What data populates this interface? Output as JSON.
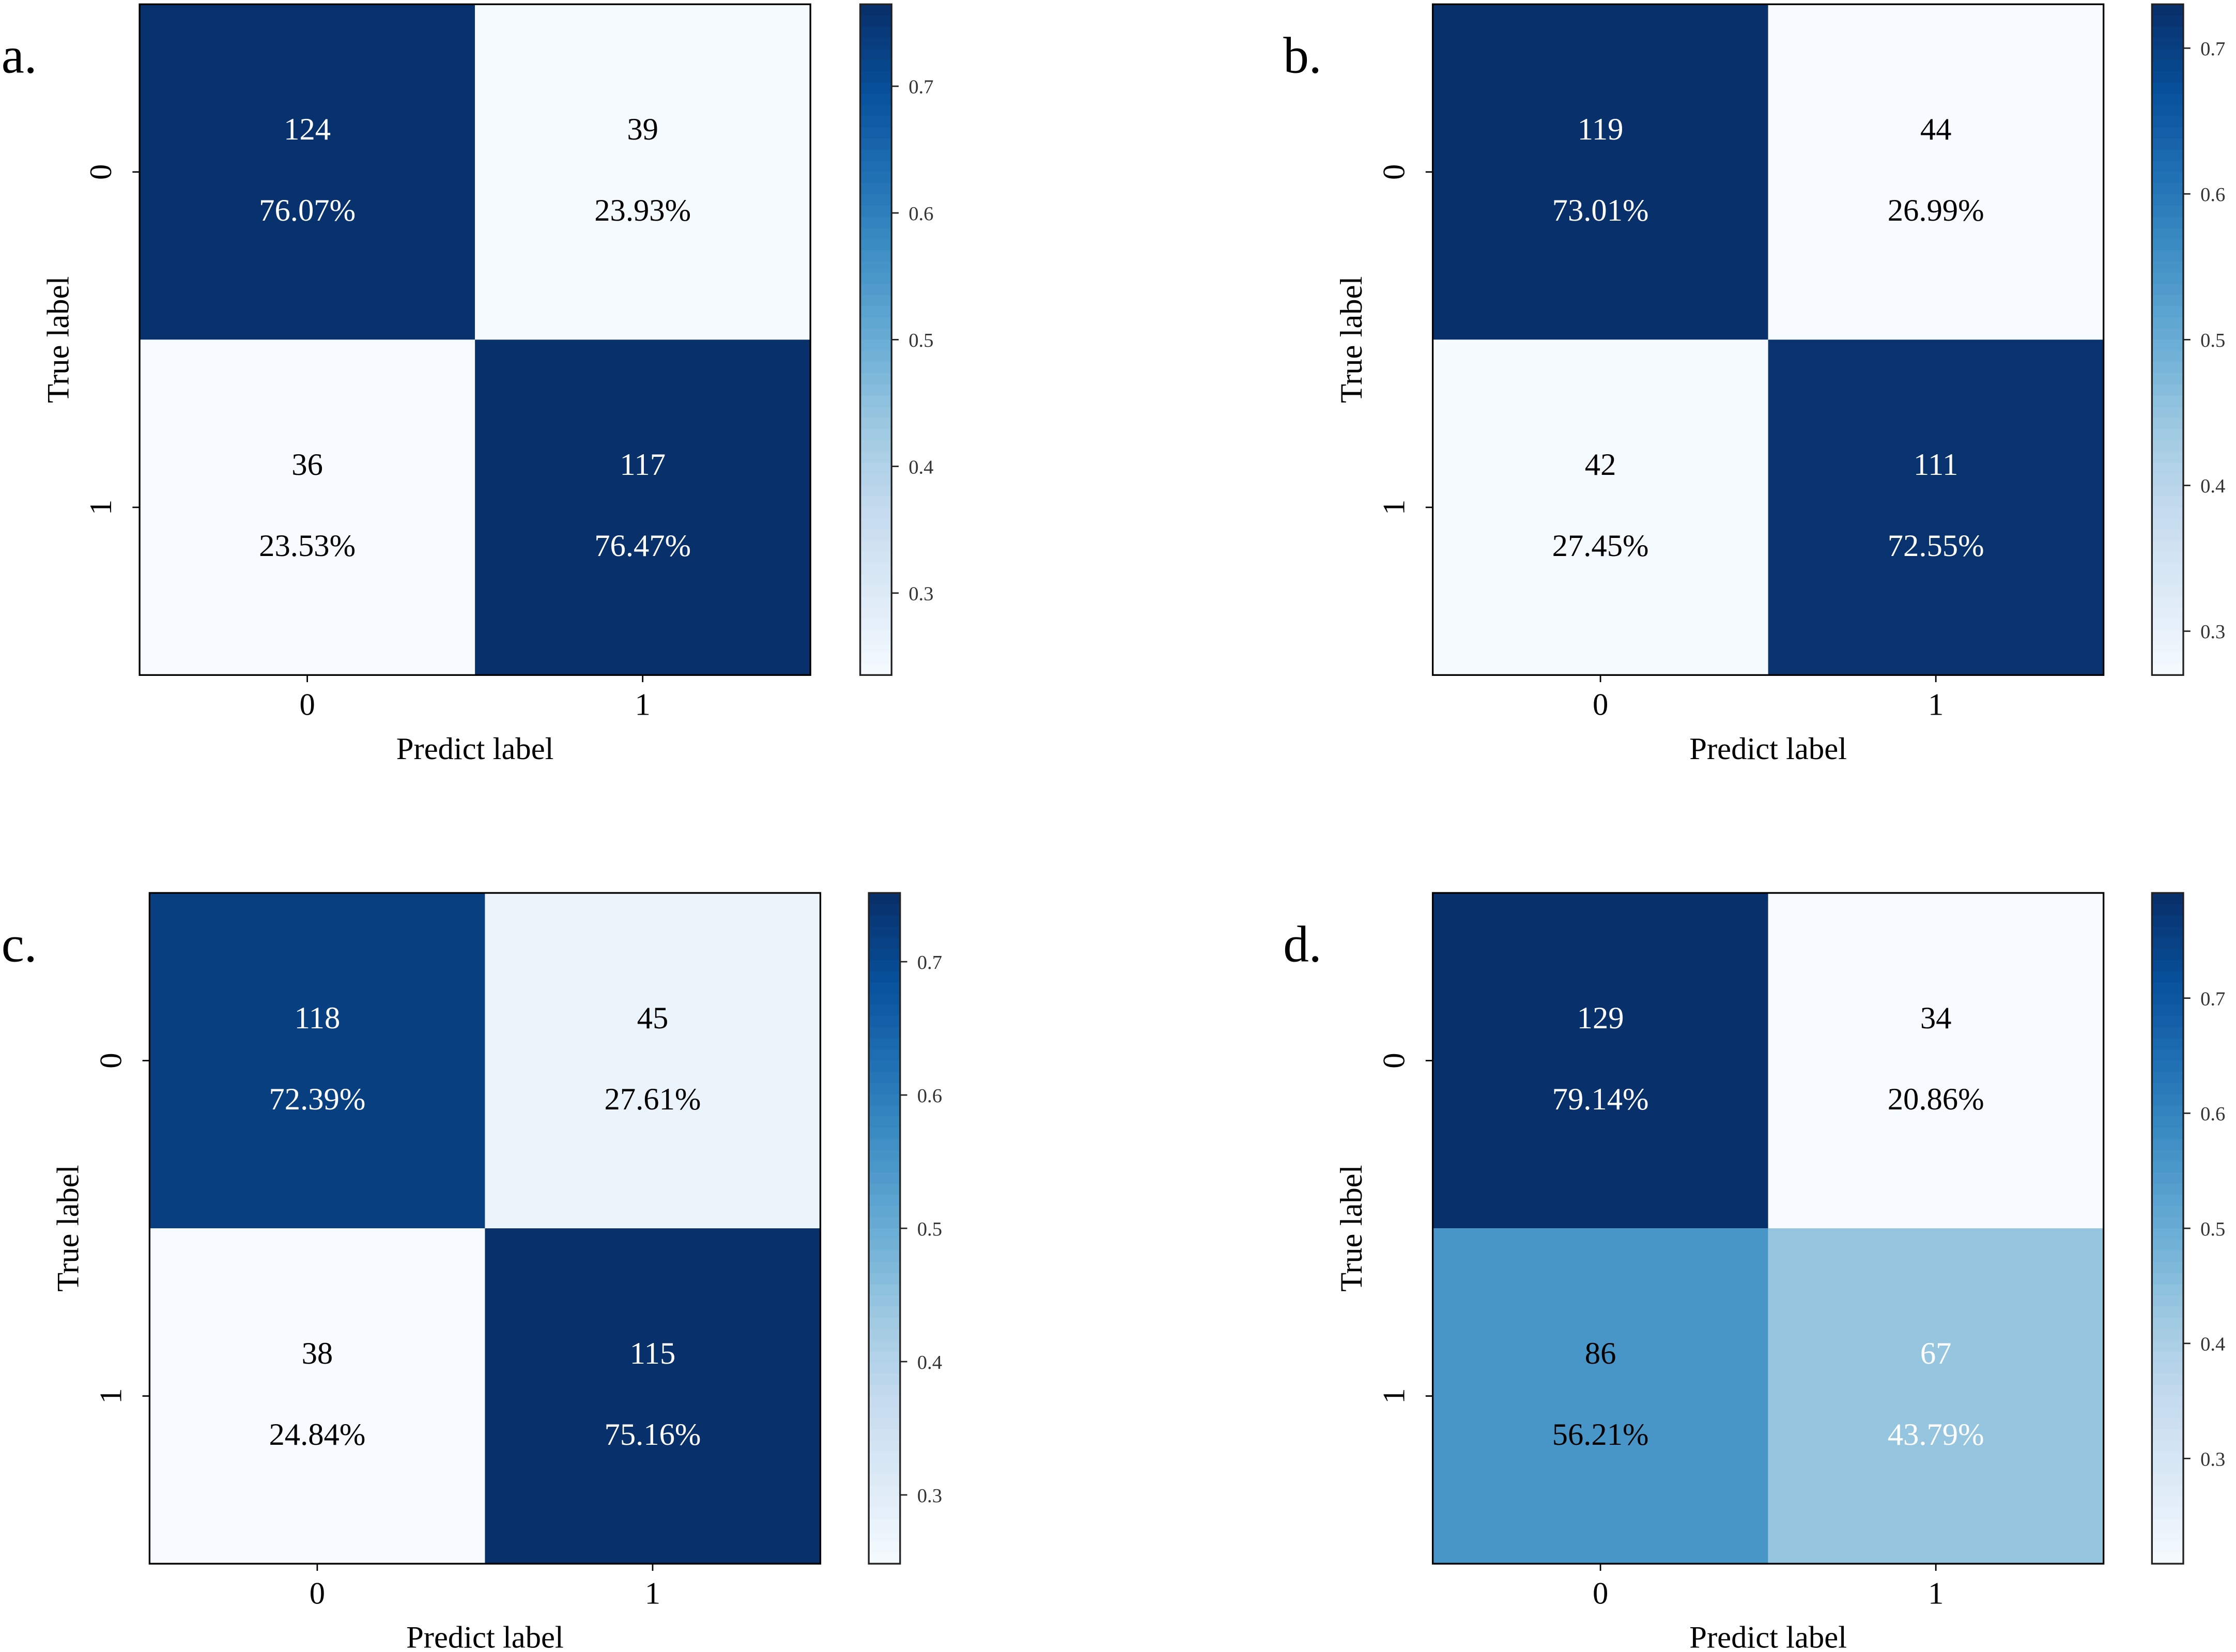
{
  "chart_data": [
    {
      "type": "heatmap",
      "panel_label": "a.",
      "xlabel": "Predict label",
      "ylabel": "True label",
      "x_ticks": [
        "0",
        "1"
      ],
      "y_ticks": [
        "0",
        "1"
      ],
      "counts": [
        [
          124,
          39
        ],
        [
          36,
          117
        ]
      ],
      "percent_labels": [
        [
          "76.07%",
          "23.93%"
        ],
        [
          "23.53%",
          "76.47%"
        ]
      ],
      "values": [
        [
          0.7607,
          0.2393
        ],
        [
          0.2353,
          0.7647
        ]
      ],
      "text_colors": [
        [
          "#ffffff",
          "#000000"
        ],
        [
          "#000000",
          "#ffffff"
        ]
      ],
      "colorbar": {
        "range": [
          0.2353,
          0.7647
        ],
        "ticks": [
          0.3,
          0.4,
          0.5,
          0.6,
          0.7
        ],
        "tick_labels": [
          "0.3",
          "0.4",
          "0.5",
          "0.6",
          "0.7"
        ]
      }
    },
    {
      "type": "heatmap",
      "panel_label": "b.",
      "xlabel": "Predict label",
      "ylabel": "True label",
      "x_ticks": [
        "0",
        "1"
      ],
      "y_ticks": [
        "0",
        "1"
      ],
      "counts": [
        [
          119,
          44
        ],
        [
          42,
          111
        ]
      ],
      "percent_labels": [
        [
          "73.01%",
          "26.99%"
        ],
        [
          "27.45%",
          "72.55%"
        ]
      ],
      "values": [
        [
          0.7301,
          0.2699
        ],
        [
          0.2745,
          0.7255
        ]
      ],
      "text_colors": [
        [
          "#ffffff",
          "#000000"
        ],
        [
          "#000000",
          "#ffffff"
        ]
      ],
      "colorbar": {
        "range": [
          0.2699,
          0.7301
        ],
        "ticks": [
          0.3,
          0.4,
          0.5,
          0.6,
          0.7
        ],
        "tick_labels": [
          "0.3",
          "0.4",
          "0.5",
          "0.6",
          "0.7"
        ]
      }
    },
    {
      "type": "heatmap",
      "panel_label": "c.",
      "xlabel": "Predict label",
      "ylabel": "True label",
      "x_ticks": [
        "0",
        "1"
      ],
      "y_ticks": [
        "0",
        "1"
      ],
      "counts": [
        [
          118,
          45
        ],
        [
          38,
          115
        ]
      ],
      "percent_labels": [
        [
          "72.39%",
          "27.61%"
        ],
        [
          "24.84%",
          "75.16%"
        ]
      ],
      "values": [
        [
          0.7239,
          0.2761
        ],
        [
          0.2484,
          0.7516
        ]
      ],
      "text_colors": [
        [
          "#ffffff",
          "#000000"
        ],
        [
          "#000000",
          "#ffffff"
        ]
      ],
      "colorbar": {
        "range": [
          0.2484,
          0.7516
        ],
        "ticks": [
          0.3,
          0.4,
          0.5,
          0.6,
          0.7
        ],
        "tick_labels": [
          "0.3",
          "0.4",
          "0.5",
          "0.6",
          "0.7"
        ]
      }
    },
    {
      "type": "heatmap",
      "panel_label": "d.",
      "xlabel": "Predict label",
      "ylabel": "True label",
      "x_ticks": [
        "0",
        "1"
      ],
      "y_ticks": [
        "0",
        "1"
      ],
      "counts": [
        [
          129,
          34
        ],
        [
          86,
          67
        ]
      ],
      "percent_labels": [
        [
          "79.14%",
          "20.86%"
        ],
        [
          "56.21%",
          "43.79%"
        ]
      ],
      "values": [
        [
          0.7914,
          0.2086
        ],
        [
          0.5621,
          0.4379
        ]
      ],
      "text_colors": [
        [
          "#ffffff",
          "#000000"
        ],
        [
          "#000000",
          "#ffffff"
        ]
      ],
      "colorbar": {
        "range": [
          0.2086,
          0.7914
        ],
        "ticks": [
          0.3,
          0.4,
          0.5,
          0.6,
          0.7
        ],
        "tick_labels": [
          "0.3",
          "0.4",
          "0.5",
          "0.6",
          "0.7"
        ]
      }
    }
  ],
  "colormap": [
    "#f7fbff",
    "#deebf7",
    "#c6dbef",
    "#9ecae1",
    "#6baed6",
    "#4292c6",
    "#2171b5",
    "#08519c",
    "#08306b"
  ]
}
